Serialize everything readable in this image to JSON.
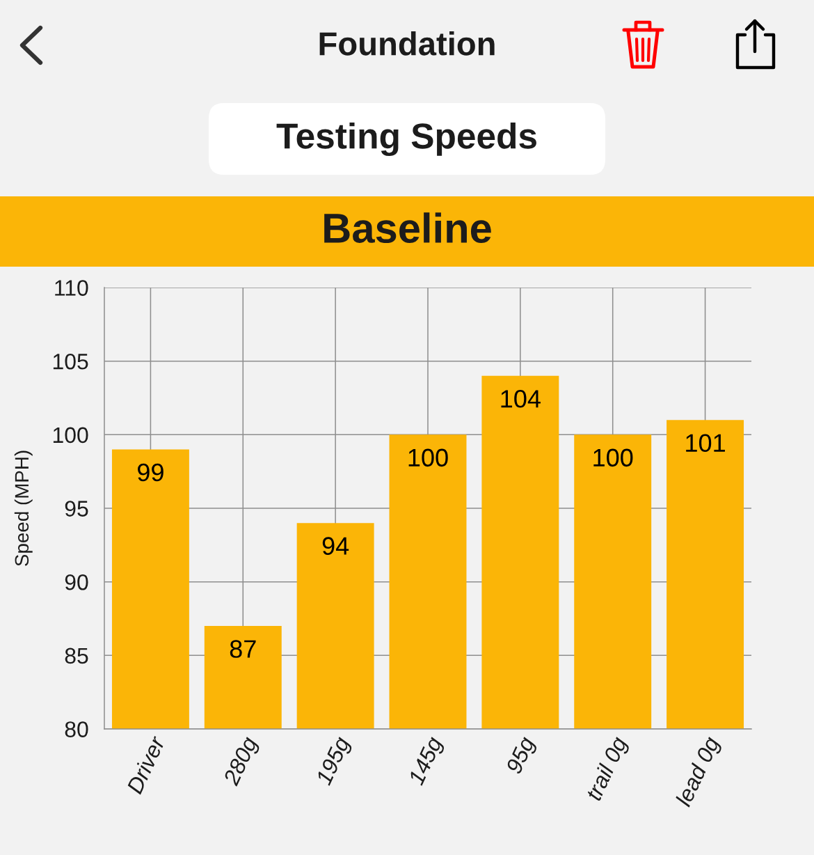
{
  "chart_data": {
    "type": "bar",
    "title": "Testing Speeds",
    "subtitle": "Baseline",
    "annotations": [
      "Foundation"
    ],
    "ylabel": "Speed (MPH)",
    "categories": [
      "Driver",
      "280g",
      "195g",
      "145g",
      "95g",
      "trail 0g",
      "lead 0g"
    ],
    "values": [
      99,
      87,
      94,
      100,
      104,
      100,
      101
    ],
    "color": "#fbb507",
    "ylim": [
      80,
      110
    ],
    "yticks": [
      80,
      85,
      90,
      95,
      100,
      105,
      110
    ],
    "grid": true,
    "data_labels": true
  }
}
